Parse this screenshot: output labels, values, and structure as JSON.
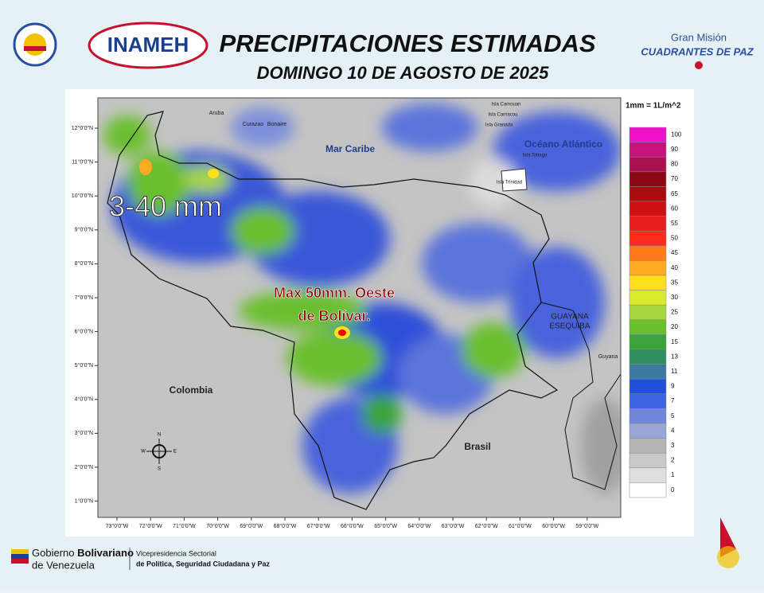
{
  "header": {
    "title": "PRECIPITACIONES ESTIMADAS",
    "subtitle": "DOMINGO 10 DE AGOSTO DE 2025",
    "logo_left": "INAMEH",
    "logo_right_top": "Gran Misión",
    "logo_right_bottom": "CUADRANTES DE PAZ"
  },
  "map": {
    "annotation_range": "3-40 mm",
    "annotation_max": [
      "Max 50mm. Oeste",
      "de Bolívar."
    ],
    "places": {
      "sea": "Mar Caribe",
      "ocean": "Océano Atlántico",
      "colombia": "Colombia",
      "brasil": "Brasil",
      "guayana": [
        "GUAYANA",
        "ESEQUIBA"
      ],
      "guyana": "Guyana",
      "aruba": "Aruba",
      "curazao": "Curazao",
      "bonaire": "Bonaire",
      "trinidad": "Isla Trinidad",
      "tobago": "Isla Tobago",
      "granada": "Isla Granada",
      "carriacou": "Isla Carriacou",
      "camouan": "Isla Camouan"
    },
    "compass": [
      "N",
      "S",
      "E",
      "W"
    ],
    "lat_ticks": [
      "12°0'0\"N",
      "11°0'0\"N",
      "10°0'0\"N",
      "9°0'0\"N",
      "8°0'0\"N",
      "7°0'0\"N",
      "6°0'0\"N",
      "5°0'0\"N",
      "4°0'0\"N",
      "3°0'0\"N",
      "2°0'0\"N",
      "1°0'0\"N"
    ],
    "lon_ticks": [
      "73°0'0\"W",
      "72°0'0\"W",
      "71°0'0\"W",
      "70°0'0\"W",
      "69°0'0\"W",
      "68°0'0\"W",
      "67°0'0\"W",
      "66°0'0\"W",
      "65°0'0\"W",
      "64°0'0\"W",
      "63°0'0\"W",
      "62°0'0\"W",
      "61°0'0\"W",
      "60°0'0\"W",
      "59°0'0\"W"
    ]
  },
  "legend": {
    "unit": "1mm = 1L/m^2",
    "levels": [
      {
        "value": 100,
        "color": "#f20fc8"
      },
      {
        "value": 90,
        "color": "#c8137a"
      },
      {
        "value": 80,
        "color": "#a8104e"
      },
      {
        "value": 70,
        "color": "#8a0a14"
      },
      {
        "value": 65,
        "color": "#a80c0c"
      },
      {
        "value": 60,
        "color": "#d01010"
      },
      {
        "value": 55,
        "color": "#e81c1c"
      },
      {
        "value": 50,
        "color": "#ff2a1a"
      },
      {
        "value": 45,
        "color": "#ff7a1a"
      },
      {
        "value": 40,
        "color": "#ffaa22"
      },
      {
        "value": 35,
        "color": "#ffe01a"
      },
      {
        "value": 30,
        "color": "#d8ea2a"
      },
      {
        "value": 25,
        "color": "#a6d640"
      },
      {
        "value": 20,
        "color": "#6abf2e"
      },
      {
        "value": 15,
        "color": "#3aa43a"
      },
      {
        "value": 13,
        "color": "#2f8f60"
      },
      {
        "value": 11,
        "color": "#3a7aa0"
      },
      {
        "value": 9,
        "color": "#2050d8"
      },
      {
        "value": 7,
        "color": "#3d64e0"
      },
      {
        "value": 5,
        "color": "#6f86dc"
      },
      {
        "value": 4,
        "color": "#9aa6d4"
      },
      {
        "value": 3,
        "color": "#b4b4b4"
      },
      {
        "value": 2,
        "color": "#c9c9c9"
      },
      {
        "value": 1,
        "color": "#e0e0e0"
      },
      {
        "value": 0,
        "color": "#ffffff"
      }
    ]
  },
  "footer": {
    "gov_1": "Gobierno",
    "gov_2": "Bolivariano",
    "gov_3": "de Venezuela",
    "vice_1": "Vicepresidencia Sectorial",
    "vice_2": "de Política, Seguridad Ciudadana y Paz"
  }
}
